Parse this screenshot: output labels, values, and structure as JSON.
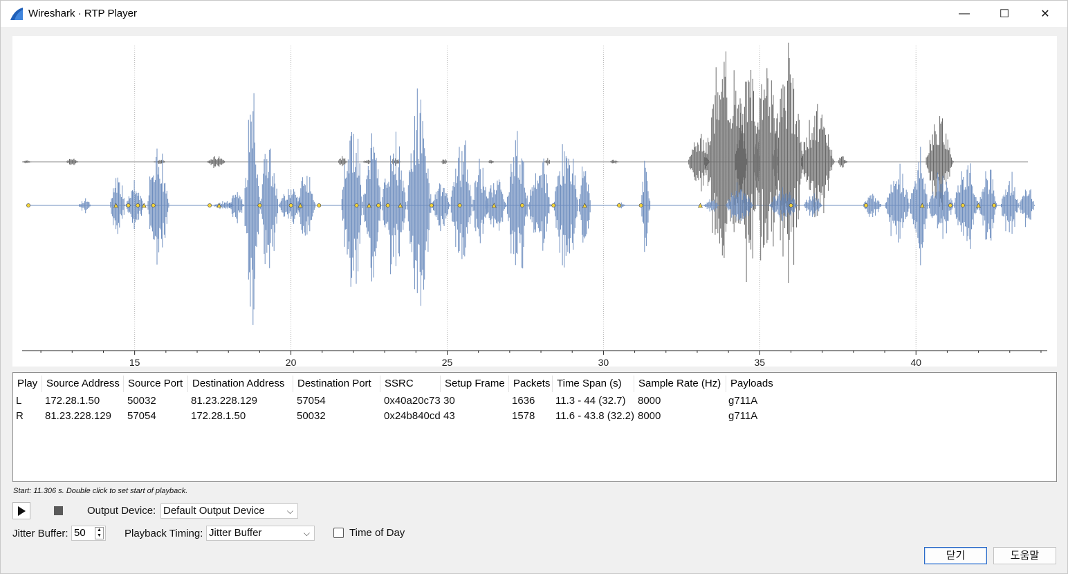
{
  "window": {
    "title": "Wireshark · RTP Player",
    "min_glyph": "—",
    "max_glyph": "☐",
    "close_glyph": "✕",
    "icon": "wireshark-fin-icon"
  },
  "colors": {
    "waveform_left": "#6e8ebf",
    "waveform_right": "#6a6a6a",
    "marker_fill": "#f2d33b",
    "default_button_border": "#2c6bc8"
  },
  "plot": {
    "x_ticks": [
      "15",
      "20",
      "25",
      "30",
      "35",
      "40"
    ],
    "x_range": [
      11.4,
      44.2
    ]
  },
  "table": {
    "columns": [
      "Play",
      "Source Address",
      "Source Port",
      "Destination Address",
      "Destination Port",
      "SSRC",
      "Setup Frame",
      "Packets",
      "Time Span (s)",
      "Sample Rate (Hz)",
      "Payloads"
    ],
    "rows": [
      [
        "L",
        "172.28.1.50",
        "50032",
        "81.23.228.129",
        "57054",
        "0x40a20c73",
        "30",
        "1636",
        "11.3 - 44 (32.7)",
        "8000",
        "g711A"
      ],
      [
        "R",
        "81.23.228.129",
        "57054",
        "172.28.1.50",
        "50032",
        "0x24b840cd",
        "43",
        "1578",
        "11.6 - 43.8 (32.2)",
        "8000",
        "g711A"
      ]
    ]
  },
  "hint": "Start: 11.306 s. Double click to set start of playback.",
  "controls": {
    "output_device_label": "Output Device:",
    "output_device_value": "Default Output Device",
    "jitter_buffer_label": "Jitter Buffer:",
    "jitter_buffer_value": "50",
    "playback_timing_label": "Playback Timing:",
    "playback_timing_value": "Jitter Buffer",
    "time_of_day_label": "Time of Day",
    "time_of_day_checked": false
  },
  "buttons": {
    "close": "닫기",
    "help": "도움말"
  }
}
